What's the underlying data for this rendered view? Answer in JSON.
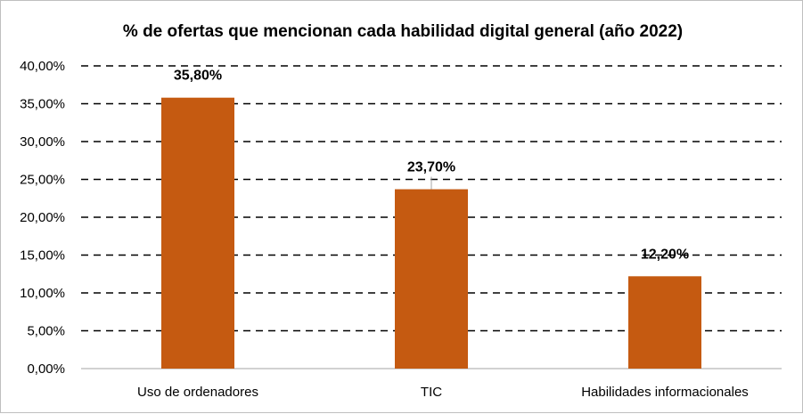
{
  "chart_data": {
    "type": "bar",
    "title": "% de ofertas que mencionan cada habilidad digital general  (año 2022)",
    "categories": [
      "Uso de ordenadores",
      "TIC",
      "Habilidades informacionales"
    ],
    "values": [
      35.8,
      23.7,
      12.2
    ],
    "data_labels": [
      "35,80%",
      "23,70%",
      "12,20%"
    ],
    "ylim": [
      0,
      40
    ],
    "yticks": [
      0,
      5,
      10,
      15,
      20,
      25,
      30,
      35,
      40
    ],
    "ytick_labels": [
      "0,00%",
      "5,00%",
      "10,00%",
      "15,00%",
      "20,00%",
      "25,00%",
      "30,00%",
      "35,00%",
      "40,00%"
    ],
    "xlabel": "",
    "ylabel": "",
    "grid": "dashed horizontal",
    "legend": "none",
    "bar_color": "#c55a11"
  }
}
